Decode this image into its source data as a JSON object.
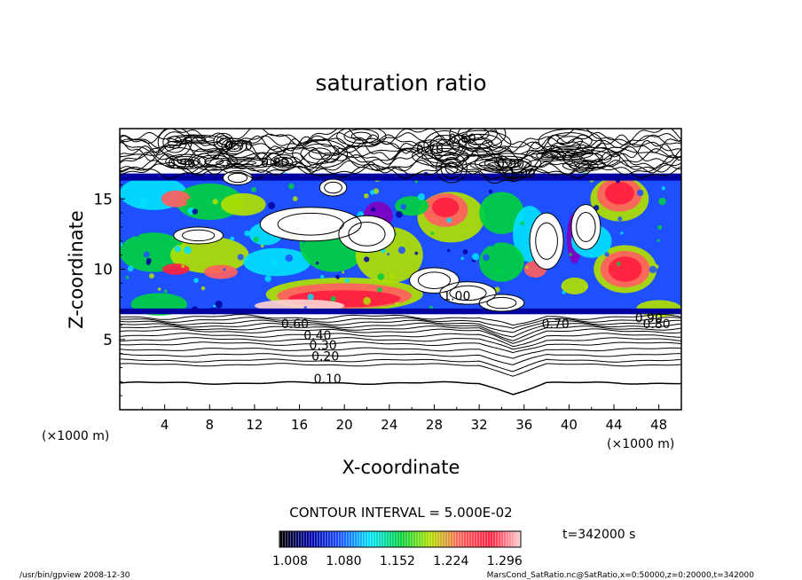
{
  "chart_data": {
    "type": "heatmap",
    "title": "saturation ratio",
    "xlabel": "X-coordinate",
    "ylabel": "Z-coordinate",
    "x_unit_left": "(×1000 m)",
    "x_unit_right": "(×1000 m)",
    "xlim": [
      0,
      50
    ],
    "ylim": [
      0,
      20
    ],
    "x_ticks": [
      "4",
      "8",
      "12",
      "16",
      "20",
      "24",
      "28",
      "32",
      "36",
      "40",
      "44",
      "48"
    ],
    "y_ticks": [
      "5",
      "10",
      "15"
    ],
    "contour_interval_text": "CONTOUR INTERVAL = 5.000E-02",
    "time_text": "t=342000 s",
    "colorbar": {
      "min": 1.008,
      "max": 1.332,
      "labels": [
        "1.008",
        "1.080",
        "1.152",
        "1.224",
        "1.296"
      ],
      "colors": [
        "#000000",
        "#0000a0",
        "#1e50ff",
        "#00e0ff",
        "#00d040",
        "#b0e000",
        "#ff6060",
        "#ff2040",
        "#ffd0d0"
      ]
    },
    "contour_labels": [
      {
        "text": "0.10",
        "x": 18.5,
        "y": 1.9
      },
      {
        "text": "0.20",
        "x": 18.3,
        "y": 3.5
      },
      {
        "text": "0.30",
        "x": 18.1,
        "y": 4.3
      },
      {
        "text": "0.40",
        "x": 17.6,
        "y": 5.0
      },
      {
        "text": "0.60",
        "x": 15.6,
        "y": 5.8
      },
      {
        "text": "0.70",
        "x": 38.8,
        "y": 5.8
      },
      {
        "text": "0.80",
        "x": 47.8,
        "y": 5.8
      },
      {
        "text": "0.90",
        "x": 47.1,
        "y": 6.2
      },
      {
        "text": "1.00",
        "x": 30.0,
        "y": 7.8
      },
      {
        "text": "0.70",
        "x": 10.6,
        "y": 18.5
      },
      {
        "text": "0.80",
        "x": 13.8,
        "y": 17.3
      },
      {
        "text": "0.90",
        "x": 5.5,
        "y": 17.2
      },
      {
        "text": "0.70",
        "x": 27.6,
        "y": 18.2
      },
      {
        "text": "0.60",
        "x": 30.5,
        "y": 19.0
      },
      {
        "text": "0.90",
        "x": 34.8,
        "y": 17.2
      },
      {
        "text": "1.00",
        "x": 35.8,
        "y": 16.5
      }
    ]
  },
  "footer": {
    "left": "/usr/bin/gpview   2008-12-30",
    "right": "MarsCond_SatRatio.nc@SatRatio,x=0:50000,z=0:20000,t=342000"
  }
}
